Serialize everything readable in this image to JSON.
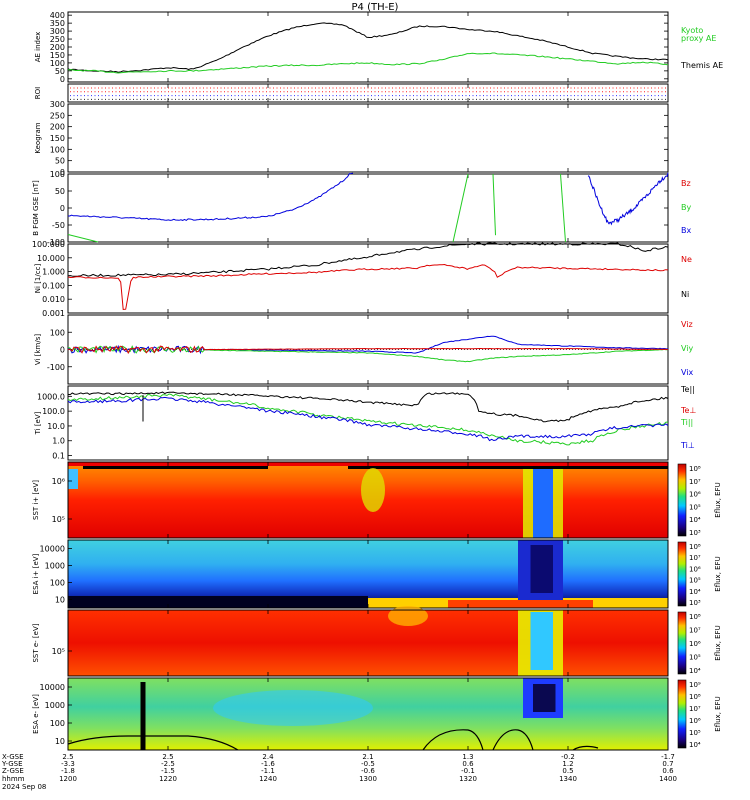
{
  "title": "P4 (TH-E)",
  "date": "2024 Sep 08",
  "colors": {
    "black": "#000000",
    "green": "#22cc22",
    "red": "#dd0000",
    "blue": "#0000dd"
  },
  "chart_data": [
    {
      "type": "line",
      "panel": "ae",
      "ylabel": "AE index",
      "ylim": [
        -20,
        420
      ],
      "yticks": [
        0,
        50,
        100,
        150,
        200,
        250,
        300,
        350,
        400
      ],
      "x_minutes": [
        0,
        5,
        10,
        15,
        20,
        25,
        30,
        35,
        40,
        45,
        50,
        55,
        60,
        65,
        70,
        75,
        80,
        85,
        90,
        95,
        100,
        105,
        110,
        115,
        120
      ],
      "series": [
        {
          "name": "Themis AE",
          "color": "#000000",
          "values": [
            60,
            50,
            45,
            55,
            70,
            60,
            120,
            200,
            270,
            320,
            350,
            340,
            260,
            280,
            330,
            330,
            310,
            300,
            270,
            240,
            200,
            160,
            140,
            125,
            120
          ]
        },
        {
          "name": "Kyoto proxy AE",
          "color": "#22cc22",
          "values": [
            55,
            50,
            40,
            45,
            50,
            50,
            60,
            70,
            80,
            85,
            85,
            95,
            100,
            90,
            95,
            120,
            160,
            160,
            150,
            140,
            125,
            110,
            95,
            105,
            90
          ]
        }
      ],
      "legend": [
        "Kyoto",
        "proxy AE",
        "Themis AE"
      ]
    },
    {
      "type": "line",
      "panel": "roi",
      "ylabel": "ROI",
      "note_rows": 4
    },
    {
      "type": "line",
      "panel": "keogram",
      "ylabel": "Keogram",
      "ylim": [
        0,
        300
      ],
      "yticks": [
        0,
        50,
        100,
        150,
        200,
        250,
        300
      ]
    },
    {
      "type": "line",
      "panel": "bfgm",
      "ylabel": "B FGM GSE [nT]",
      "ylim": [
        -100,
        100
      ],
      "yticks": [
        -100,
        -50,
        0,
        50,
        100
      ],
      "legend": [
        "Bz",
        "By",
        "Bx"
      ]
    },
    {
      "type": "line",
      "panel": "ni",
      "ylabel": "Ni [1/cc]",
      "ylim_log": [
        0.001,
        100
      ],
      "yticks": [
        "0.001",
        "0.010",
        "0.100",
        "1.000",
        "10.000",
        "100.000"
      ],
      "legend": [
        "Ne",
        "Ni"
      ]
    },
    {
      "type": "line",
      "panel": "vi",
      "ylabel": "Vi [km/s]",
      "ylim": [
        -200,
        200
      ],
      "yticks": [
        "-100",
        "0",
        "100"
      ],
      "legend": [
        "Viz",
        "Viy",
        "Vix"
      ]
    },
    {
      "type": "line",
      "panel": "ti",
      "ylabel": "Ti [eV]",
      "ylim_log": [
        0.05,
        5000
      ],
      "yticks": [
        "0.1",
        "1.0",
        "10.0",
        "100.0",
        "1000.0"
      ],
      "legend": [
        "Te||",
        "Te⊥",
        "Ti||",
        "Ti⊥"
      ]
    },
    {
      "type": "heatmap",
      "panel": "sst_i",
      "ylabel": "SST i+ [eV]",
      "yticks": [
        "10⁶",
        "10⁵"
      ],
      "cbar": [
        "10⁸",
        "10⁷",
        "10⁶",
        "10⁵",
        "10⁴",
        "10³"
      ],
      "cbar_label": "Eflux, EFU"
    },
    {
      "type": "heatmap",
      "panel": "esa_i",
      "ylabel": "ESA i+ [eV]",
      "yticks": [
        "10000",
        "1000",
        "100",
        "10"
      ],
      "cbar": [
        "10⁸",
        "10⁷",
        "10⁶",
        "10⁵",
        "10⁴",
        "10³"
      ],
      "cbar_label": "Eflux, EFU"
    },
    {
      "type": "heatmap",
      "panel": "sst_e",
      "ylabel": "SST e- [eV]",
      "yticks": [
        "10⁵"
      ],
      "cbar": [
        "10⁸",
        "10⁷",
        "10⁶",
        "10⁵",
        "10⁴"
      ],
      "cbar_label": "Eflux, EFU"
    },
    {
      "type": "heatmap",
      "panel": "esa_e",
      "ylabel": "ESA e- [eV]",
      "yticks": [
        "10000",
        "1000",
        "100",
        "10"
      ],
      "cbar": [
        "10⁹",
        "10⁸",
        "10⁷",
        "10⁶",
        "10⁵",
        "10⁴"
      ],
      "cbar_label": "Eflux, EFU"
    }
  ],
  "x_axis": {
    "row_labels": [
      "X-GSE",
      "Y-GSE",
      "Z-GSE",
      "hhmm",
      "2024 Sep 08"
    ],
    "ticks": [
      {
        "x": "2.5",
        "y": "-3.3",
        "z": "-1.8",
        "t": "1200"
      },
      {
        "x": "2.5",
        "y": "-2.5",
        "z": "-1.5",
        "t": "1220"
      },
      {
        "x": "2.4",
        "y": "-1.6",
        "z": "-1.1",
        "t": "1240"
      },
      {
        "x": "2.1",
        "y": "-0.5",
        "z": "-0.6",
        "t": "1300"
      },
      {
        "x": "1.3",
        "y": "0.6",
        "z": "-0.1",
        "t": "1320"
      },
      {
        "x": "-0.2",
        "y": "1.2",
        "z": "0.5",
        "t": "1340"
      },
      {
        "x": "-1.7",
        "y": "0.7",
        "z": "0.6",
        "t": "1400"
      }
    ]
  }
}
